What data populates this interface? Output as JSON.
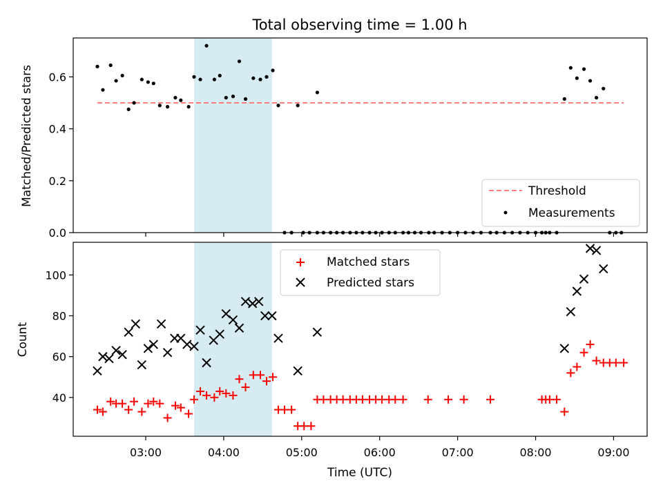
{
  "chart_data": [
    {
      "type": "scatter",
      "title": "Total observing time = 1.00 h",
      "ylabel": "Matched/Predicted stars",
      "xlabel": "",
      "x_unit": "hours UTC",
      "xlim": [
        2.07,
        9.43
      ],
      "ylim": [
        0,
        0.75
      ],
      "yticks": [
        0.0,
        0.2,
        0.4,
        0.6
      ],
      "ytick_labels": [
        "0.0",
        "0.2",
        "0.4",
        "0.6"
      ],
      "highlight_band": {
        "x_start": 3.62,
        "x_end": 4.62,
        "color": "#add8e6"
      },
      "legend": {
        "location": "lower right",
        "entries": [
          "Threshold",
          "Measurements"
        ]
      },
      "series": [
        {
          "name": "Threshold",
          "style": "dashed-line",
          "color": "#ff6666",
          "x": [
            2.38,
            9.13
          ],
          "y": [
            0.5,
            0.5
          ]
        },
        {
          "name": "Measurements",
          "style": "dot",
          "color": "#000000",
          "x": [
            2.38,
            2.45,
            2.55,
            2.62,
            2.7,
            2.78,
            2.85,
            2.95,
            3.03,
            3.1,
            3.18,
            3.28,
            3.38,
            3.45,
            3.55,
            3.62,
            3.7,
            3.78,
            3.88,
            3.95,
            4.03,
            4.12,
            4.2,
            4.28,
            4.38,
            4.47,
            4.55,
            4.63,
            4.7,
            4.95,
            5.2,
            8.37,
            8.45,
            8.53,
            8.62,
            8.7,
            8.78,
            8.87
          ],
          "y": [
            0.64,
            0.55,
            0.645,
            0.585,
            0.605,
            0.475,
            0.5,
            0.59,
            0.58,
            0.575,
            0.49,
            0.485,
            0.52,
            0.51,
            0.485,
            0.6,
            0.59,
            0.72,
            0.59,
            0.605,
            0.52,
            0.525,
            0.66,
            0.515,
            0.595,
            0.59,
            0.6,
            0.625,
            0.49,
            0.49,
            0.54,
            0.515,
            0.635,
            0.595,
            0.63,
            0.585,
            0.52,
            0.555
          ]
        },
        {
          "name": "Measurements (zero)",
          "style": "dot",
          "color": "#000000",
          "x": [
            4.78,
            4.87,
            5.02,
            5.1,
            5.2,
            5.28,
            5.37,
            5.45,
            5.53,
            5.62,
            5.7,
            5.78,
            5.87,
            5.95,
            6.03,
            6.12,
            6.2,
            6.3,
            6.37,
            6.45,
            6.53,
            6.63,
            6.7,
            6.8,
            6.9,
            7.0,
            7.1,
            7.2,
            7.3,
            7.42,
            7.5,
            7.6,
            7.7,
            7.8,
            7.9,
            8.0,
            8.08,
            8.13,
            8.18,
            8.27,
            8.95,
            9.03,
            9.1
          ],
          "y": [
            0,
            0,
            0,
            0,
            0,
            0,
            0,
            0,
            0,
            0,
            0,
            0,
            0,
            0,
            0,
            0,
            0,
            0,
            0,
            0,
            0,
            0,
            0,
            0,
            0,
            0,
            0,
            0,
            0,
            0,
            0,
            0,
            0,
            0,
            0,
            0,
            0,
            0,
            0,
            0,
            0,
            0,
            0
          ]
        }
      ]
    },
    {
      "type": "scatter",
      "title": "",
      "xlabel": "Time (UTC)",
      "ylabel": "Count",
      "x_unit": "hours UTC",
      "xlim": [
        2.07,
        9.43
      ],
      "ylim": [
        21,
        116
      ],
      "xticks": [
        3,
        4,
        5,
        6,
        7,
        8,
        9
      ],
      "xtick_labels": [
        "03:00",
        "04:00",
        "05:00",
        "06:00",
        "07:00",
        "08:00",
        "09:00"
      ],
      "yticks": [
        40,
        60,
        80,
        100
      ],
      "ytick_labels": [
        "40",
        "60",
        "80",
        "100"
      ],
      "highlight_band": {
        "x_start": 3.62,
        "x_end": 4.62,
        "color": "#add8e6"
      },
      "legend": {
        "location": "upper center",
        "entries": [
          "Matched stars",
          "Predicted stars"
        ]
      },
      "series": [
        {
          "name": "Matched stars",
          "style": "plus",
          "color": "#ff0000",
          "x": [
            2.38,
            2.45,
            2.55,
            2.62,
            2.7,
            2.78,
            2.85,
            2.95,
            3.03,
            3.1,
            3.18,
            3.28,
            3.38,
            3.45,
            3.55,
            3.62,
            3.7,
            3.78,
            3.88,
            3.95,
            4.03,
            4.12,
            4.2,
            4.28,
            4.38,
            4.47,
            4.55,
            4.63,
            4.7,
            4.78,
            4.87,
            4.95,
            5.03,
            5.12,
            5.2,
            5.28,
            5.37,
            5.45,
            5.53,
            5.62,
            5.7,
            5.78,
            5.87,
            5.95,
            6.03,
            6.12,
            6.2,
            6.3,
            6.62,
            6.88,
            7.08,
            7.42,
            8.08,
            8.13,
            8.18,
            8.27,
            8.37,
            8.45,
            8.53,
            8.62,
            8.7,
            8.78,
            8.87,
            8.95,
            9.03,
            9.13
          ],
          "y": [
            34,
            33,
            38,
            37,
            37,
            34,
            38,
            33,
            37,
            38,
            37,
            30,
            36,
            35,
            32,
            39,
            43,
            41,
            40,
            43,
            42,
            41,
            49,
            45,
            51,
            51,
            48,
            50,
            34,
            34,
            34,
            26,
            26,
            26,
            39,
            39,
            39,
            39,
            39,
            39,
            39,
            39,
            39,
            39,
            39,
            39,
            39,
            39,
            39,
            39,
            39,
            39,
            39,
            39,
            39,
            39,
            33,
            52,
            55,
            62,
            66,
            58,
            57,
            57,
            57,
            57
          ]
        },
        {
          "name": "Predicted stars",
          "style": "x",
          "color": "#000000",
          "x": [
            2.38,
            2.45,
            2.53,
            2.62,
            2.7,
            2.78,
            2.87,
            2.95,
            3.03,
            3.1,
            3.2,
            3.28,
            3.37,
            3.45,
            3.53,
            3.62,
            3.7,
            3.78,
            3.87,
            3.95,
            4.03,
            4.12,
            4.2,
            4.28,
            4.37,
            4.45,
            4.53,
            4.62,
            4.7,
            4.95,
            5.2,
            8.37,
            8.45,
            8.53,
            8.62,
            8.7,
            8.78,
            8.87
          ],
          "y": [
            53,
            60,
            59,
            63,
            61,
            72,
            76,
            56,
            64,
            66,
            76,
            62,
            69,
            69,
            66,
            65,
            73,
            57,
            68,
            71,
            81,
            78,
            74,
            87,
            86,
            87,
            80,
            80,
            69,
            53,
            72,
            64,
            82,
            92,
            98,
            113,
            112,
            103
          ]
        }
      ]
    }
  ]
}
